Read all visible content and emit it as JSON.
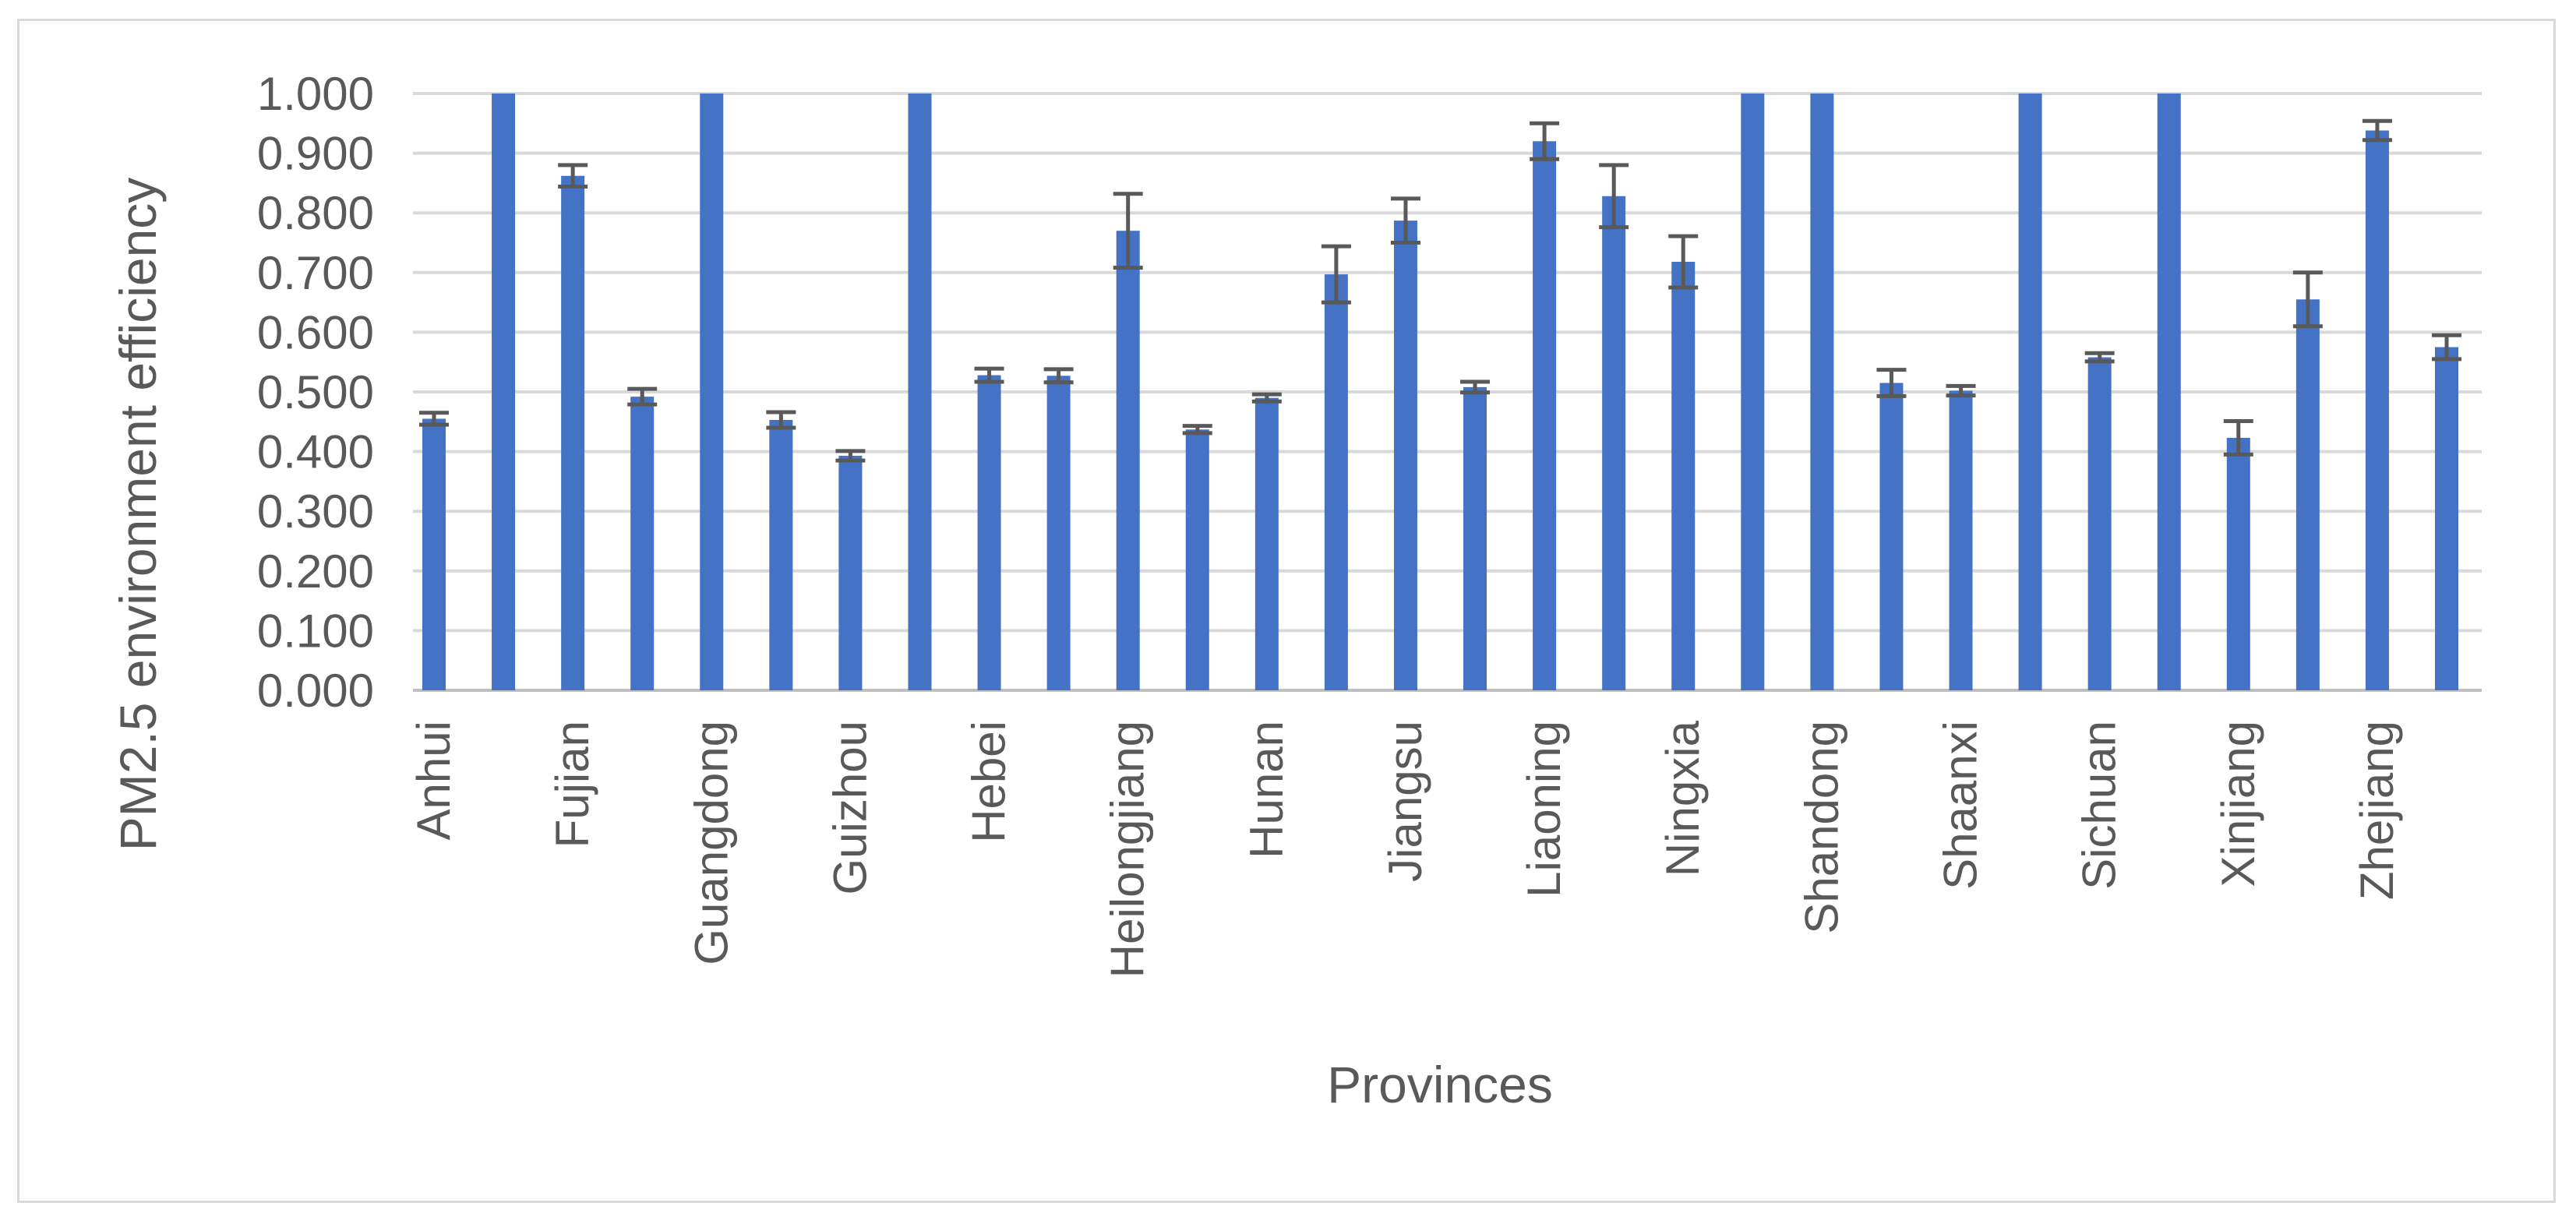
{
  "chart_data": {
    "type": "bar",
    "title": "",
    "xlabel": "Provinces",
    "ylabel": "PM2.5 environment efficiency",
    "ylim": [
      0,
      1
    ],
    "yticks": [
      "0.000",
      "0.100",
      "0.200",
      "0.300",
      "0.400",
      "0.500",
      "0.600",
      "0.700",
      "0.800",
      "0.900",
      "1.000"
    ],
    "grid": true,
    "legend": "none",
    "bar_color": "#4472C4",
    "error_bar_color": "#595959",
    "categories": [
      "Anhui",
      "",
      "Fujian",
      "",
      "Guangdong",
      "",
      "Guizhou",
      "",
      "Hebei",
      "",
      "Heilongjiang",
      "",
      "Hunan",
      "",
      "Jiangsu",
      "",
      "Liaoning",
      "",
      "Ningxia",
      "",
      "Shandong",
      "",
      "Shaanxi",
      "",
      "Sichuan",
      "",
      "Xinjiang",
      "",
      "Zhejiang",
      ""
    ],
    "values": [
      0.455,
      1.0,
      0.862,
      0.492,
      1.0,
      0.453,
      0.393,
      1.0,
      0.528,
      0.527,
      0.77,
      0.437,
      0.49,
      0.697,
      0.787,
      0.508,
      0.92,
      0.828,
      0.718,
      1.0,
      1.0,
      0.515,
      0.502,
      1.0,
      0.558,
      1.0,
      0.423,
      0.655,
      0.938,
      0.575
    ],
    "errors": [
      0.01,
      0,
      0.018,
      0.013,
      0,
      0.013,
      0.008,
      0,
      0.011,
      0.011,
      0.062,
      0.006,
      0.006,
      0.047,
      0.037,
      0.009,
      0.03,
      0.052,
      0.043,
      0,
      0,
      0.022,
      0.008,
      0,
      0.007,
      0,
      0.028,
      0.045,
      0.016,
      0.02
    ]
  }
}
